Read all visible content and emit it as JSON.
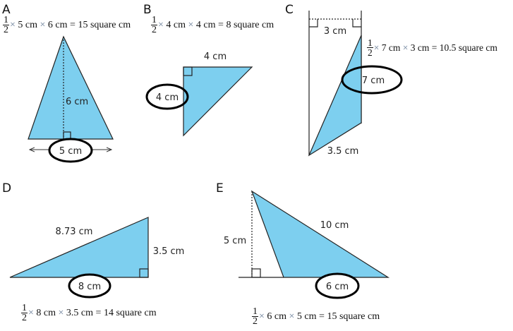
{
  "fill_color": "#7dcfef",
  "panels": {
    "a": {
      "letter": "A",
      "height": "6 cm",
      "base": "5 cm",
      "formula": {
        "num": "1",
        "den": "2",
        "f1": "5 cm",
        "f2": "6 cm",
        "result": "15 square cm"
      }
    },
    "b": {
      "letter": "B",
      "top": "4 cm",
      "side": "4 cm",
      "formula": {
        "num": "1",
        "den": "2",
        "f1": "4 cm",
        "f2": "4 cm",
        "result": "8 square cm"
      }
    },
    "c": {
      "letter": "C",
      "width": "3 cm",
      "side": "7 cm",
      "bottom": "3.5 cm",
      "formula": {
        "num": "1",
        "den": "2",
        "f1": "7 cm",
        "f2": "3 cm",
        "result": "10.5 square cm"
      }
    },
    "d": {
      "letter": "D",
      "hyp": "8.73 cm",
      "side": "3.5 cm",
      "base": "8 cm",
      "formula": {
        "num": "1",
        "den": "2",
        "f1": "8 cm",
        "f2": "3.5 cm",
        "result": "14 square cm"
      }
    },
    "e": {
      "letter": "E",
      "height": "5 cm",
      "side": "10 cm",
      "base": "6 cm",
      "formula": {
        "num": "1",
        "den": "2",
        "f1": "6 cm",
        "f2": "5 cm",
        "result": "15 square cm"
      }
    }
  },
  "symbols": {
    "times": "×",
    "equals": "="
  }
}
